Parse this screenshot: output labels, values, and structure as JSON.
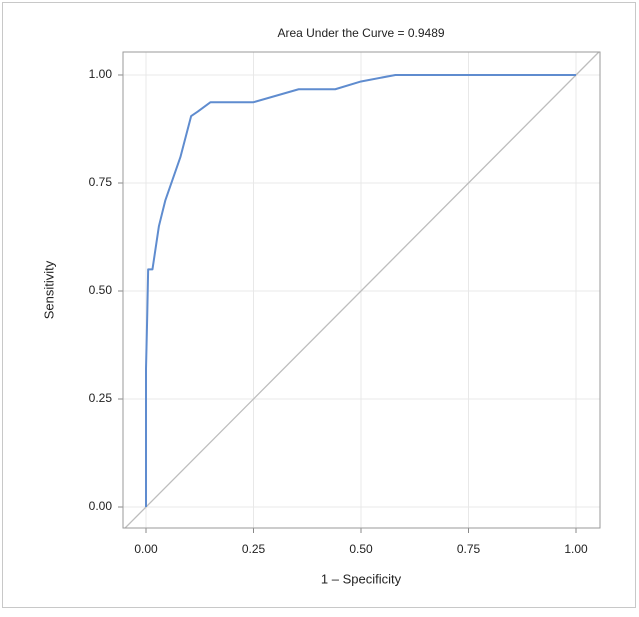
{
  "chart_data": {
    "type": "line",
    "title": "Area Under the Curve = 0.9489",
    "x_label": "1 – Specificity",
    "y_label": "Sensitivity",
    "x": [
      0,
      0,
      0.003,
      0.005,
      0.015,
      0.03,
      0.045,
      0.08,
      0.105,
      0.12,
      0.15,
      0.25,
      0.355,
      0.44,
      0.5,
      0.58,
      1.0
    ],
    "values": [
      0,
      0.32,
      0.45,
      0.55,
      0.55,
      0.65,
      0.71,
      0.81,
      0.905,
      0.915,
      0.937,
      0.937,
      0.967,
      0.967,
      0.985,
      1.0,
      1.0
    ],
    "color": "#5f8ccf",
    "xlim": [
      -0.0535,
      1.0558
    ],
    "ylim": [
      -0.0486,
      1.0532
    ],
    "xticks": [
      {
        "value": 0,
        "label": "0.00"
      },
      {
        "value": 0.25,
        "label": "0.25"
      },
      {
        "value": 0.5,
        "label": "0.50"
      },
      {
        "value": 0.75,
        "label": "0.75"
      },
      {
        "value": 1,
        "label": "1.00"
      }
    ],
    "yticks": [
      {
        "value": 0,
        "label": "0.00"
      },
      {
        "value": 0.25,
        "label": "0.25"
      },
      {
        "value": 0.5,
        "label": "0.50"
      },
      {
        "value": 0.75,
        "label": "0.75"
      },
      {
        "value": 1,
        "label": "1.00"
      }
    ],
    "grid": true,
    "diagonal": true
  }
}
